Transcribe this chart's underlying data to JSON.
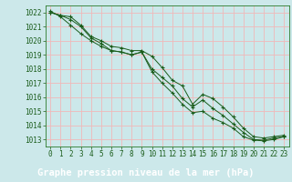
{
  "title": "Graphe pression niveau de la mer (hPa)",
  "bg_color": "#cce8ea",
  "plot_bg_color": "#cce8ea",
  "grid_color": "#f0b8b8",
  "line_color": "#1a5c1a",
  "marker_color": "#1a5c1a",
  "bottom_bar_color": "#2a7a2a",
  "bottom_text_color": "#ffffff",
  "x_values": [
    0,
    1,
    2,
    3,
    4,
    5,
    6,
    7,
    8,
    9,
    10,
    11,
    12,
    13,
    14,
    15,
    16,
    17,
    18,
    19,
    20,
    21,
    22,
    23
  ],
  "series": [
    [
      1022.0,
      1021.8,
      1021.7,
      1021.1,
      1020.3,
      1020.0,
      1019.6,
      1019.5,
      1019.3,
      1019.3,
      1018.9,
      1018.1,
      1017.2,
      1016.8,
      1015.5,
      1016.2,
      1015.9,
      1015.3,
      1014.6,
      1013.8,
      1013.2,
      1013.1,
      1013.2,
      1013.3
    ],
    [
      1022.0,
      1021.8,
      1021.5,
      1021.0,
      1020.2,
      1019.8,
      1019.3,
      1019.2,
      1019.0,
      1019.2,
      1018.0,
      1017.4,
      1016.8,
      1015.9,
      1015.3,
      1015.8,
      1015.2,
      1014.7,
      1014.1,
      1013.5,
      1013.0,
      1012.95,
      1013.1,
      1013.2
    ],
    [
      1022.1,
      1021.7,
      1021.1,
      1020.5,
      1020.0,
      1019.6,
      1019.3,
      1019.2,
      1019.0,
      1019.2,
      1017.8,
      1017.0,
      1016.3,
      1015.5,
      1014.9,
      1015.0,
      1014.5,
      1014.2,
      1013.8,
      1013.2,
      1012.95,
      1012.9,
      1013.0,
      1013.2
    ]
  ],
  "ylim": [
    1012.5,
    1022.5
  ],
  "yticks": [
    1013,
    1014,
    1015,
    1016,
    1017,
    1018,
    1019,
    1020,
    1021,
    1022
  ],
  "xlim": [
    -0.5,
    23.5
  ],
  "xticks": [
    0,
    1,
    2,
    3,
    4,
    5,
    6,
    7,
    8,
    9,
    10,
    11,
    12,
    13,
    14,
    15,
    16,
    17,
    18,
    19,
    20,
    21,
    22,
    23
  ],
  "tick_fontsize": 5.5,
  "title_fontsize": 7.5,
  "axis_color": "#2a7a2a",
  "tick_color": "#1a5c1a"
}
